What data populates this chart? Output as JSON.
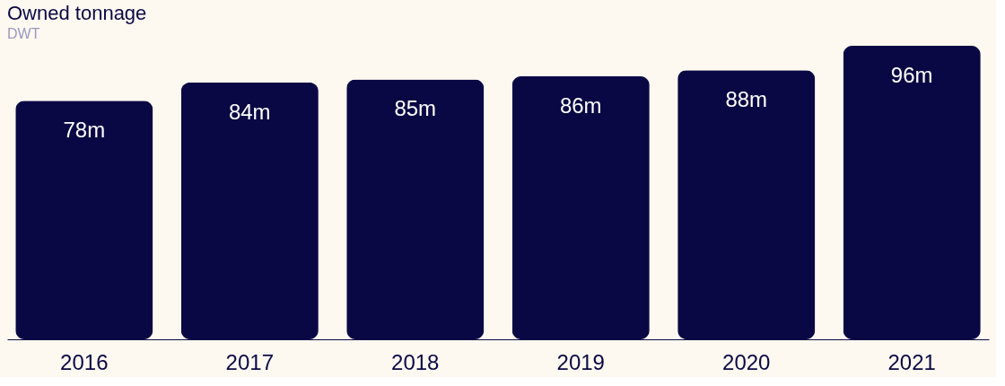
{
  "chart_data": {
    "type": "bar",
    "title": "Owned tonnage",
    "subtitle": "DWT",
    "categories": [
      "2016",
      "2017",
      "2018",
      "2019",
      "2020",
      "2021"
    ],
    "values": [
      78,
      84,
      85,
      86,
      88,
      96
    ],
    "value_labels": [
      "78m",
      "84m",
      "85m",
      "86m",
      "88m",
      "96m"
    ],
    "color": "#0a0844",
    "grid": false,
    "tick_labels": "x"
  }
}
